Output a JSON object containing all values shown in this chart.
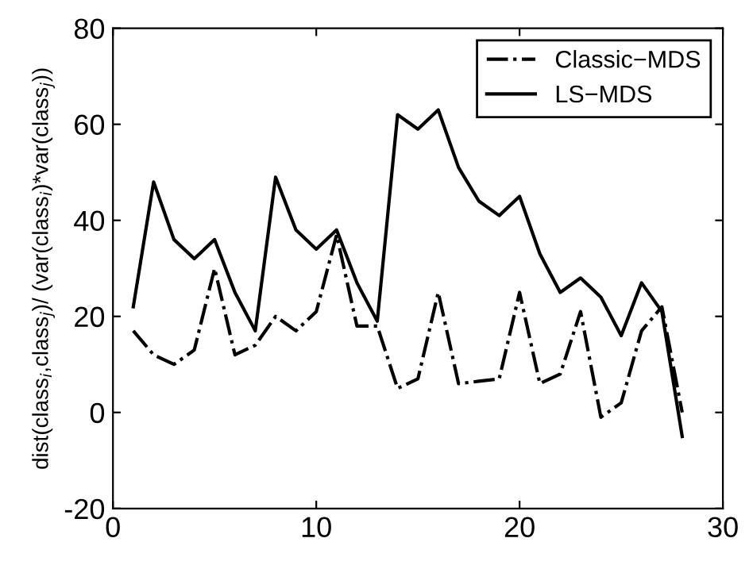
{
  "chart_data": {
    "type": "line",
    "ylabel": "dist(class$_{i}$,class$_{j}$)/ (var(class$_{i}$)*var(class$_{j}$))",
    "x": [
      1,
      2,
      3,
      4,
      5,
      6,
      7,
      8,
      9,
      10,
      11,
      12,
      13,
      14,
      15,
      16,
      17,
      18,
      19,
      20,
      21,
      22,
      23,
      24,
      25,
      26,
      27,
      28
    ],
    "series": [
      {
        "name": "Classic−MDS",
        "color": "#000000",
        "line_style": "dashdot",
        "values": [
          17,
          12,
          10,
          13,
          30,
          12,
          14,
          20,
          17,
          21,
          37,
          18,
          18,
          5,
          7,
          25,
          6,
          6.5,
          7,
          25,
          6,
          8,
          21,
          -1,
          2,
          17,
          22,
          0
        ]
      },
      {
        "name": "LS−MDS",
        "color": "#000000",
        "line_style": "solid",
        "values": [
          22,
          48,
          36,
          32,
          36,
          25,
          17,
          49,
          38,
          34,
          38,
          27,
          19,
          62,
          59,
          63,
          51,
          44,
          41,
          45,
          33,
          25,
          28,
          24,
          16,
          27,
          21,
          -5
        ]
      }
    ],
    "xlim": [
      0,
      30
    ],
    "xticks": [
      0,
      10,
      20,
      30
    ],
    "ylim": [
      -20,
      80
    ],
    "yticks": [
      -20,
      0,
      20,
      40,
      60,
      80
    ],
    "legend": "top right",
    "grid": false,
    "marker": "none"
  }
}
